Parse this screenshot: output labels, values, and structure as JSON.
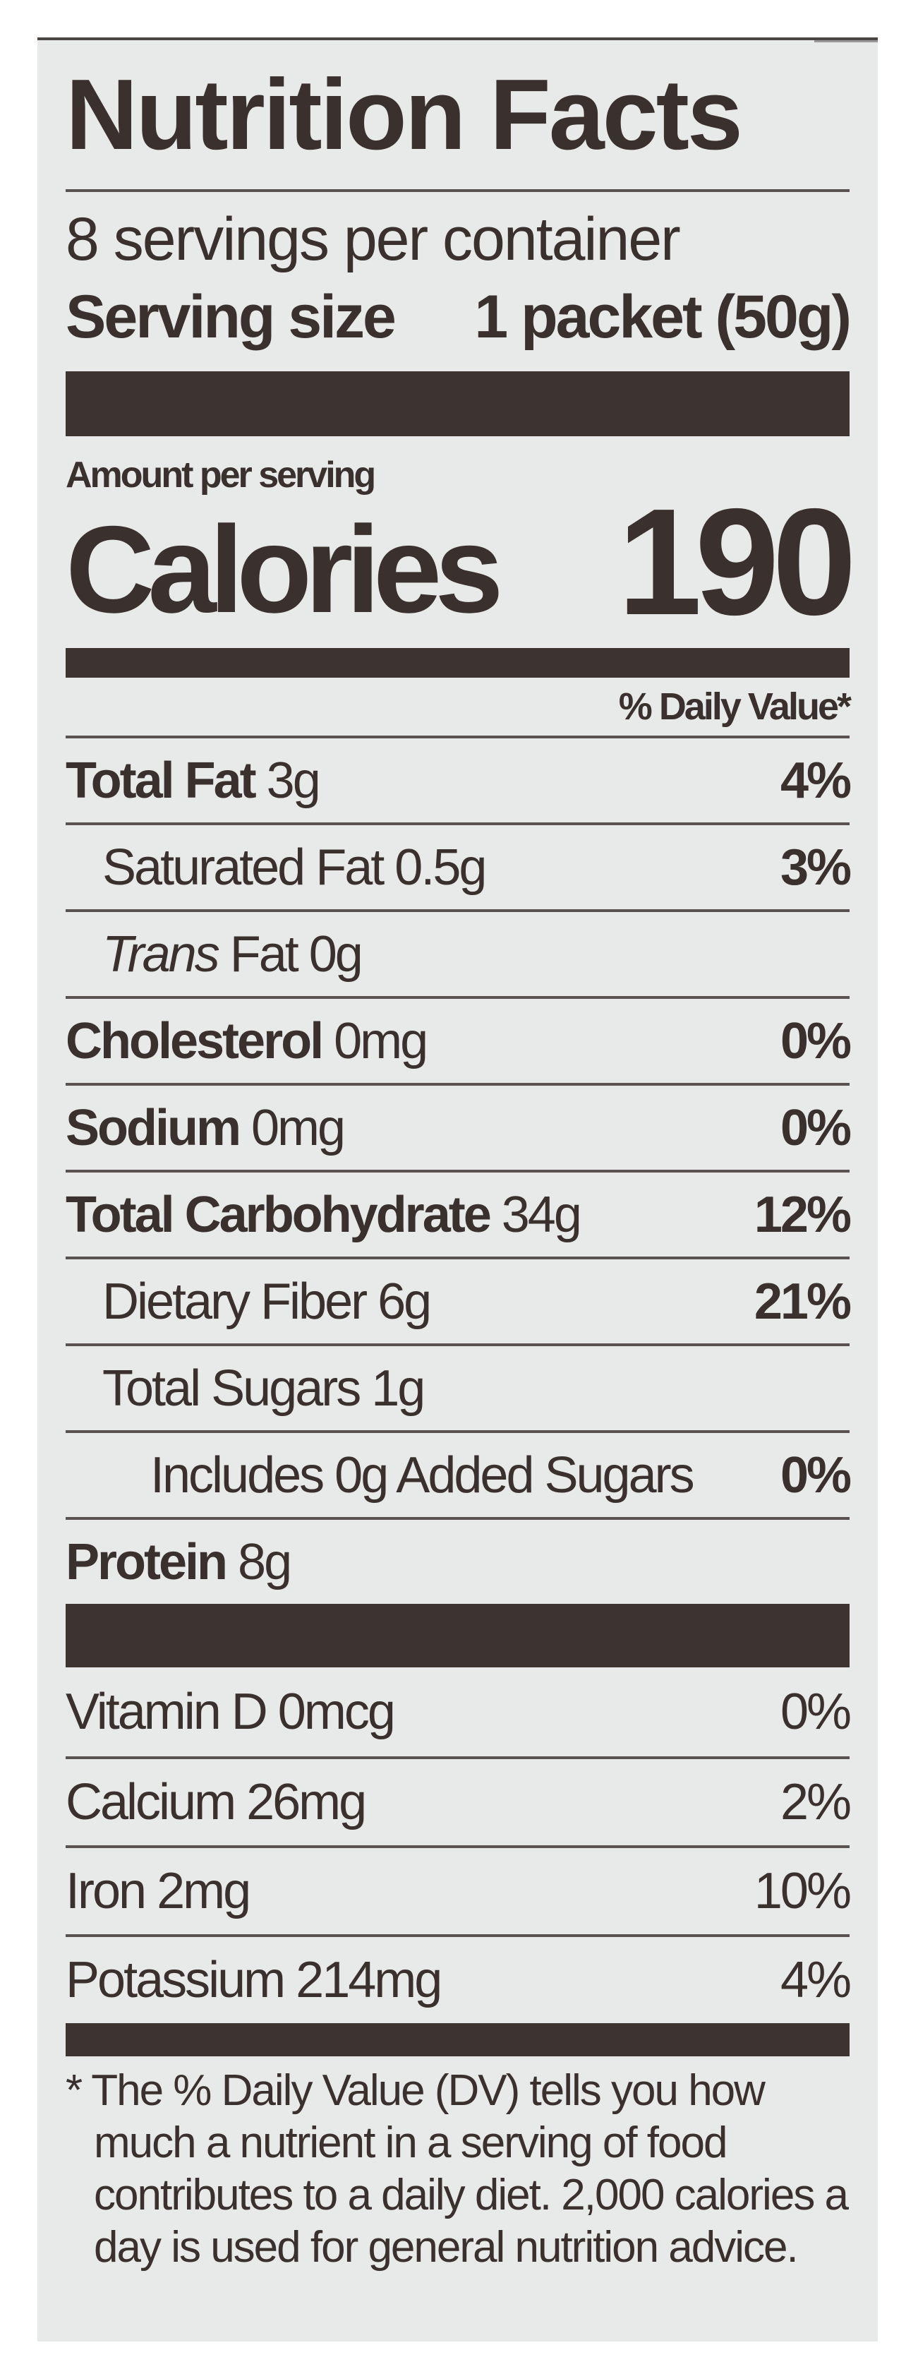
{
  "title": "Nutrition Facts",
  "servings_per_container": "8 servings per container",
  "serving_size_label": "Serving size",
  "serving_size_value": "1 packet (50g)",
  "amount_per_serving": "Amount per serving",
  "calories_label": "Calories",
  "calories_value": "190",
  "daily_value_header": "% Daily Value*",
  "nutrients": [
    {
      "name": "Total Fat",
      "amount": "3g",
      "dv": "4%",
      "bold": true,
      "indent": 0
    },
    {
      "name": "Saturated Fat",
      "amount": "0.5g",
      "dv": "3%",
      "bold": false,
      "indent": 1
    },
    {
      "name_italic": "Trans",
      "name": "Fat",
      "amount": "0g",
      "dv": "",
      "bold": false,
      "indent": 1
    },
    {
      "name": "Cholesterol",
      "amount": "0mg",
      "dv": "0%",
      "bold": true,
      "indent": 0
    },
    {
      "name": "Sodium",
      "amount": "0mg",
      "dv": "0%",
      "bold": true,
      "indent": 0
    },
    {
      "name": "Total Carbohydrate",
      "amount": "34g",
      "dv": "12%",
      "bold": true,
      "indent": 0
    },
    {
      "name": "Dietary Fiber",
      "amount": "6g",
      "dv": "21%",
      "bold": false,
      "indent": 1
    },
    {
      "name": "Total Sugars",
      "amount": "1g",
      "dv": "",
      "bold": false,
      "indent": 1
    },
    {
      "name": "Includes 0g Added Sugars",
      "amount": "",
      "dv": "0%",
      "bold": false,
      "indent": 2
    },
    {
      "name": "Protein",
      "amount": "8g",
      "dv": "",
      "bold": true,
      "indent": 0
    }
  ],
  "vitamins": [
    {
      "name": "Vitamin D",
      "amount": "0mcg",
      "dv": "0%"
    },
    {
      "name": "Calcium",
      "amount": "26mg",
      "dv": "2%"
    },
    {
      "name": "Iron",
      "amount": "2mg",
      "dv": "10%"
    },
    {
      "name": "Potassium",
      "amount": "214mg",
      "dv": "4%"
    }
  ],
  "footnote": "* The % Daily Value (DV) tells you how much a nutrient in a serving of food contributes to a daily diet. 2,000 calories a day is used for general nutrition advice.",
  "colors": {
    "ink": "#3a302d",
    "panel": "#e8eae9"
  }
}
